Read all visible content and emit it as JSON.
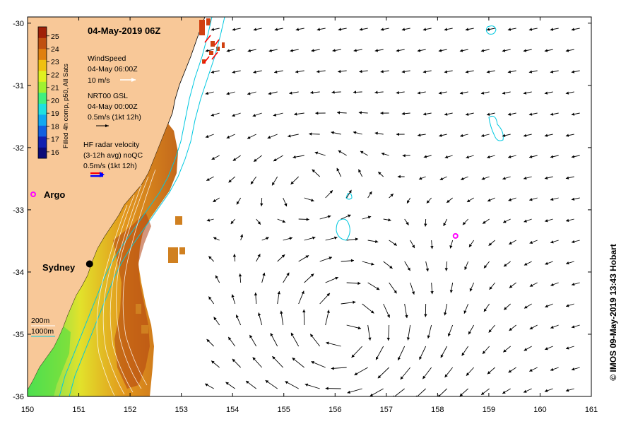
{
  "title": "04-May-2019 06Z",
  "credit": "© IMOS 09-May-2019 13:43 Hobart",
  "axes": {
    "x_ticks": [
      "150",
      "151",
      "152",
      "153",
      "154",
      "155",
      "156",
      "157",
      "158",
      "159",
      "160",
      "161"
    ],
    "y_ticks": [
      "-30",
      "-31",
      "-32",
      "-33",
      "-34",
      "-35",
      "-36"
    ],
    "lon_range": [
      150,
      161
    ],
    "lat_range": [
      -36,
      -29.9
    ]
  },
  "colorbar": {
    "title": "Filled 4h comp, p50, All Sats",
    "labels": [
      "25",
      "24",
      "23",
      "22",
      "21",
      "20",
      "19",
      "18",
      "17",
      "16"
    ],
    "range": [
      15.5,
      25.7
    ],
    "colors": [
      "#0a0a78",
      "#1020b0",
      "#1060e0",
      "#10a8f0",
      "#20e0e0",
      "#40f080",
      "#a0f030",
      "#e0f020",
      "#f0c010",
      "#e08010",
      "#c05010",
      "#a02008"
    ]
  },
  "legend": {
    "wind_title": "WindSpeed",
    "wind_time": "04-May 06:00Z",
    "wind_scale": "10 m/s",
    "gsl_title": "NRT00 GSL",
    "gsl_time": "04-May 00:00Z",
    "gsl_scale": "0.5m/s (1kt 12h)",
    "hf_title": "HF radar velocity",
    "hf_detail": "(3-12h avg) noQC",
    "hf_scale": "0.5m/s (1kt 12h)",
    "depth_200": "200m",
    "depth_1000": "1000m"
  },
  "places": {
    "argo": "Argo",
    "sydney": "Sydney"
  },
  "markers": {
    "argo_float": {
      "lon": 158.35,
      "lat": -33.42
    },
    "sydney": {
      "lon": 151.21,
      "lat": -33.87
    }
  },
  "colors": {
    "land": "#f8c898",
    "coastline": "#000000",
    "isobath": "#00c8e0",
    "argo": "#ff00ff",
    "current_arrow": "#000000",
    "hf_red": "#ff0000",
    "hf_blue": "#0000ff"
  }
}
